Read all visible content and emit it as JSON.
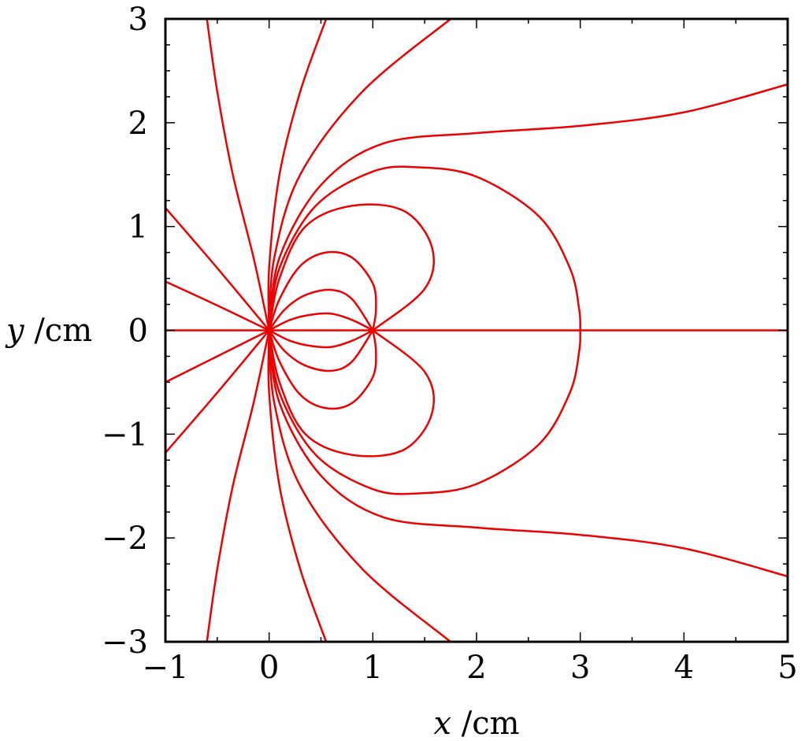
{
  "chart_data": {
    "type": "line",
    "title": "",
    "xlabel": {
      "var": "x",
      "unit": " /cm"
    },
    "ylabel": {
      "var": "y",
      "unit": " /cm"
    },
    "xlim": [
      -1,
      5
    ],
    "ylim": [
      -3,
      3
    ],
    "grid": false,
    "line_color": "#ee0000",
    "x_ticks": [
      {
        "value": -1,
        "label": "−1"
      },
      {
        "value": 0,
        "label": "0"
      },
      {
        "value": 1,
        "label": "1"
      },
      {
        "value": 2,
        "label": "2"
      },
      {
        "value": 3,
        "label": "3"
      },
      {
        "value": 4,
        "label": "4"
      },
      {
        "value": 5,
        "label": "5"
      }
    ],
    "y_ticks": [
      {
        "value": -3,
        "label": "−3"
      },
      {
        "value": -2,
        "label": "−2"
      },
      {
        "value": -1,
        "label": "−1"
      },
      {
        "value": 0,
        "label": "0"
      },
      {
        "value": 1,
        "label": "1"
      },
      {
        "value": 2,
        "label": "2"
      },
      {
        "value": 3,
        "label": "3"
      }
    ],
    "series": [
      {
        "points": [
          [
            -1,
            0
          ],
          [
            5,
            0
          ]
        ]
      },
      {
        "points": [
          [
            0,
            0
          ],
          [
            0.2,
            0.1
          ],
          [
            0.4,
            0.15
          ],
          [
            0.6,
            0.16
          ],
          [
            0.8,
            0.1
          ],
          [
            1,
            0
          ]
        ]
      },
      {
        "points": [
          [
            0,
            0
          ],
          [
            0.2,
            -0.1
          ],
          [
            0.4,
            -0.15
          ],
          [
            0.6,
            -0.16
          ],
          [
            0.8,
            -0.1
          ],
          [
            1,
            0
          ]
        ]
      },
      {
        "points": [
          [
            0,
            0
          ],
          [
            0.15,
            0.2
          ],
          [
            0.35,
            0.34
          ],
          [
            0.6,
            0.39
          ],
          [
            0.8,
            0.3
          ],
          [
            1,
            0
          ]
        ]
      },
      {
        "points": [
          [
            0,
            0
          ],
          [
            0.15,
            -0.2
          ],
          [
            0.35,
            -0.34
          ],
          [
            0.6,
            -0.39
          ],
          [
            0.8,
            -0.3
          ],
          [
            1,
            0
          ]
        ]
      },
      {
        "points": [
          [
            0,
            0
          ],
          [
            0.1,
            0.3
          ],
          [
            0.3,
            0.62
          ],
          [
            0.55,
            0.75
          ],
          [
            0.8,
            0.7
          ],
          [
            1.0,
            0.45
          ],
          [
            1.03,
            0.2
          ],
          [
            1,
            0
          ]
        ]
      },
      {
        "points": [
          [
            0,
            0
          ],
          [
            0.1,
            -0.3
          ],
          [
            0.3,
            -0.62
          ],
          [
            0.55,
            -0.75
          ],
          [
            0.8,
            -0.7
          ],
          [
            1.0,
            -0.45
          ],
          [
            1.03,
            -0.2
          ],
          [
            1,
            0
          ]
        ]
      },
      {
        "points": [
          [
            0,
            0
          ],
          [
            0.1,
            0.5
          ],
          [
            0.35,
            1.0
          ],
          [
            0.8,
            1.2
          ],
          [
            1.3,
            1.15
          ],
          [
            1.57,
            0.8
          ],
          [
            1.5,
            0.4
          ],
          [
            1,
            0
          ]
        ]
      },
      {
        "points": [
          [
            0,
            0
          ],
          [
            0.1,
            -0.5
          ],
          [
            0.35,
            -1.0
          ],
          [
            0.8,
            -1.2
          ],
          [
            1.3,
            -1.15
          ],
          [
            1.57,
            -0.8
          ],
          [
            1.5,
            -0.4
          ],
          [
            1,
            0
          ]
        ]
      },
      {
        "points": [
          [
            0,
            0
          ],
          [
            0.1,
            0.6
          ],
          [
            0.45,
            1.2
          ],
          [
            1,
            1.53
          ],
          [
            1.45,
            1.57
          ],
          [
            2,
            1.48
          ],
          [
            2.6,
            1.1
          ],
          [
            2.9,
            0.6
          ],
          [
            2.99,
            0.2
          ],
          [
            3,
            0
          ]
        ]
      },
      {
        "points": [
          [
            0,
            0
          ],
          [
            0.1,
            -0.6
          ],
          [
            0.45,
            -1.2
          ],
          [
            1,
            -1.53
          ],
          [
            1.45,
            -1.57
          ],
          [
            2,
            -1.48
          ],
          [
            2.6,
            -1.1
          ],
          [
            2.9,
            -0.6
          ],
          [
            2.99,
            -0.2
          ],
          [
            3,
            0
          ]
        ]
      },
      {
        "points": [
          [
            0,
            0
          ],
          [
            0.1,
            0.7
          ],
          [
            0.5,
            1.4
          ],
          [
            1.1,
            1.8
          ],
          [
            2,
            1.9
          ],
          [
            3,
            1.97
          ],
          [
            4,
            2.1
          ],
          [
            5,
            2.37
          ]
        ]
      },
      {
        "points": [
          [
            0,
            0
          ],
          [
            0.1,
            -0.7
          ],
          [
            0.5,
            -1.4
          ],
          [
            1.1,
            -1.8
          ],
          [
            2,
            -1.9
          ],
          [
            3,
            -1.97
          ],
          [
            4,
            -2.1
          ],
          [
            5,
            -2.37
          ]
        ]
      },
      {
        "points": [
          [
            0,
            0
          ],
          [
            0.05,
            0.7
          ],
          [
            0.3,
            1.5
          ],
          [
            0.9,
            2.3
          ],
          [
            1.75,
            3
          ]
        ]
      },
      {
        "points": [
          [
            0,
            0
          ],
          [
            0.05,
            -0.7
          ],
          [
            0.3,
            -1.5
          ],
          [
            0.9,
            -2.3
          ],
          [
            1.75,
            -3
          ]
        ]
      },
      {
        "points": [
          [
            0,
            0
          ],
          [
            0,
            0.6
          ],
          [
            0.1,
            1.5
          ],
          [
            0.3,
            2.3
          ],
          [
            0.55,
            3
          ]
        ]
      },
      {
        "points": [
          [
            0,
            0
          ],
          [
            0,
            -0.6
          ],
          [
            0.1,
            -1.5
          ],
          [
            0.3,
            -2.3
          ],
          [
            0.55,
            -3
          ]
        ]
      },
      {
        "points": [
          [
            0,
            0
          ],
          [
            -0.15,
            0.7
          ],
          [
            -0.35,
            1.5
          ],
          [
            -0.5,
            2.3
          ],
          [
            -0.6,
            3
          ]
        ]
      },
      {
        "points": [
          [
            0,
            0
          ],
          [
            -0.15,
            -0.7
          ],
          [
            -0.35,
            -1.5
          ],
          [
            -0.5,
            -2.3
          ],
          [
            -0.6,
            -3
          ]
        ]
      },
      {
        "points": [
          [
            0,
            0
          ],
          [
            -0.5,
            0.6
          ],
          [
            -1,
            1.18
          ]
        ]
      },
      {
        "points": [
          [
            0,
            0
          ],
          [
            -0.5,
            -0.6
          ],
          [
            -1,
            -1.18
          ]
        ]
      },
      {
        "points": [
          [
            0,
            0
          ],
          [
            -0.5,
            0.24
          ],
          [
            -1,
            0.47
          ]
        ]
      },
      {
        "points": [
          [
            0,
            0
          ],
          [
            -0.5,
            -0.25
          ],
          [
            -1,
            -0.5
          ]
        ]
      }
    ]
  }
}
